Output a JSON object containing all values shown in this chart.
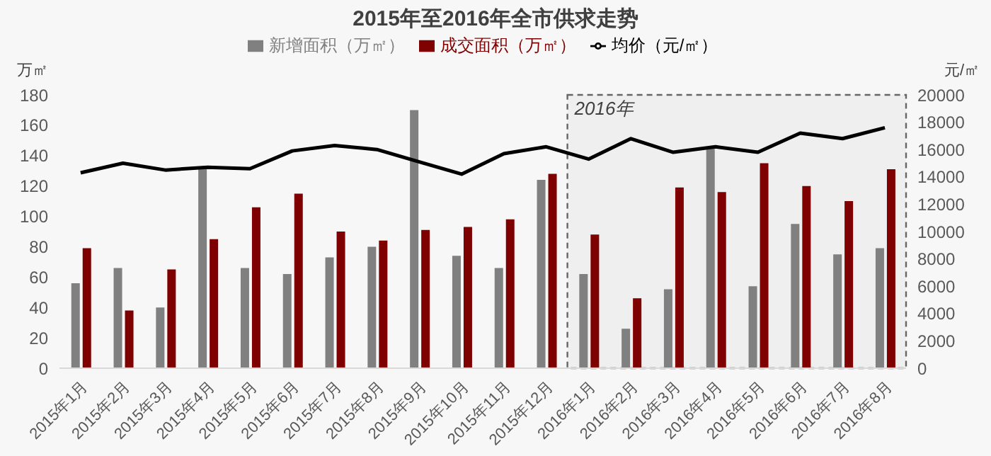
{
  "chart_data": {
    "type": "bar",
    "title": "2015年至2016年全市供求走势",
    "ylabel": "万㎡",
    "y2label": "元/㎡",
    "categories": [
      "2015年1月",
      "2015年2月",
      "2015年3月",
      "2015年4月",
      "2015年5月",
      "2015年6月",
      "2015年7月",
      "2015年8月",
      "2015年9月",
      "2015年10月",
      "2015年11月",
      "2015年12月",
      "2016年1月",
      "2016年2月",
      "2016年3月",
      "2016年4月",
      "2016年5月",
      "2016年6月",
      "2016年7月",
      "2016年8月"
    ],
    "series": [
      {
        "name": "新增面积（万㎡）",
        "color": "#808080",
        "values": [
          56,
          66,
          40,
          131,
          66,
          62,
          73,
          80,
          170,
          74,
          66,
          124,
          62,
          26,
          52,
          146,
          54,
          95,
          75,
          79
        ]
      },
      {
        "name": "成交面积（万㎡）",
        "color": "#7f0000",
        "values": [
          79,
          38,
          65,
          85,
          106,
          115,
          90,
          84,
          91,
          93,
          98,
          128,
          88,
          46,
          119,
          116,
          135,
          120,
          110,
          131
        ]
      },
      {
        "name": "均价（元/㎡）",
        "type": "line",
        "axis": "y2",
        "color": "#000000",
        "values": [
          14300,
          15000,
          14500,
          14700,
          14600,
          15900,
          16300,
          16000,
          15100,
          14200,
          15700,
          16200,
          15300,
          16800,
          15800,
          16200,
          15800,
          17200,
          16800,
          17600
        ]
      }
    ],
    "ylim": [
      0,
      180
    ],
    "yticks": [
      0,
      20,
      40,
      60,
      80,
      100,
      120,
      140,
      160,
      180
    ],
    "y2lim": [
      0,
      20000
    ],
    "y2ticks": [
      0,
      2000,
      4000,
      6000,
      8000,
      10000,
      12000,
      14000,
      16000,
      18000,
      20000
    ],
    "bands": [
      {
        "axis": "x",
        "from": "2016年1月",
        "to": "2016年8月",
        "label": "2016年",
        "color": "#666666"
      }
    ],
    "grid": false,
    "legend": "top",
    "marker": "none",
    "line_style": "solid"
  }
}
